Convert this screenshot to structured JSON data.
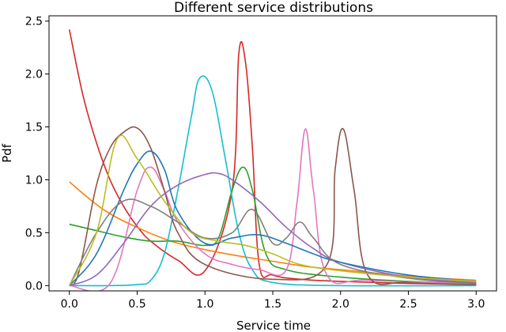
{
  "chart_data": {
    "type": "line",
    "title": "Different service distributions",
    "xlabel": "Service time",
    "ylabel": "Pdf",
    "xlim": [
      -0.15,
      3.15
    ],
    "ylim": [
      -0.05,
      2.55
    ],
    "xticks": [
      0.0,
      0.5,
      1.0,
      1.5,
      2.0,
      2.5,
      3.0
    ],
    "xtick_labels": [
      "0.0",
      "0.5",
      "1.0",
      "1.5",
      "2.0",
      "2.5",
      "3.0"
    ],
    "yticks": [
      0.0,
      0.5,
      1.0,
      1.5,
      2.0,
      2.5
    ],
    "ytick_labels": [
      "0.0",
      "0.5",
      "1.0",
      "1.5",
      "2.0",
      "2.5"
    ],
    "grid": false,
    "legend": "none",
    "series": [
      {
        "color": "#d62728",
        "x": [
          0.0,
          0.1,
          0.2,
          0.3,
          0.4,
          0.5,
          0.6,
          0.8,
          1.0,
          1.2,
          1.25,
          1.3,
          1.35,
          1.4,
          1.5,
          1.7,
          2.0,
          2.5,
          3.0
        ],
        "values": [
          2.42,
          1.8,
          1.35,
          1.0,
          0.75,
          0.56,
          0.42,
          0.24,
          0.14,
          0.9,
          2.2,
          2.1,
          1.3,
          0.2,
          0.1,
          0.06,
          0.04,
          0.02,
          0.01
        ]
      },
      {
        "color": "#ff7f0e",
        "x": [
          0.0,
          0.25,
          0.5,
          0.75,
          1.0,
          1.25,
          1.5,
          1.75,
          2.0,
          2.5,
          3.0
        ],
        "values": [
          0.98,
          0.72,
          0.55,
          0.42,
          0.34,
          0.28,
          0.23,
          0.18,
          0.15,
          0.09,
          0.05
        ]
      },
      {
        "color": "#2ca02c",
        "x": [
          0.0,
          0.2,
          0.4,
          0.6,
          0.8,
          1.0,
          1.1,
          1.2,
          1.28,
          1.35,
          1.45,
          1.6,
          2.0,
          2.5,
          3.0
        ],
        "values": [
          0.58,
          0.52,
          0.46,
          0.42,
          0.42,
          0.38,
          0.45,
          0.9,
          1.12,
          0.9,
          0.3,
          0.15,
          0.08,
          0.04,
          0.02
        ]
      },
      {
        "color": "#17becf",
        "x": [
          0.0,
          0.3,
          0.5,
          0.6,
          0.7,
          0.8,
          0.9,
          0.96,
          1.05,
          1.15,
          1.25,
          1.35,
          1.5,
          2.0,
          3.0
        ],
        "values": [
          0.0,
          0.0,
          0.01,
          0.05,
          0.3,
          0.9,
          1.6,
          1.96,
          1.85,
          1.2,
          0.5,
          0.15,
          0.03,
          0.0,
          0.0
        ]
      },
      {
        "color": "#e377c2",
        "x": [
          0.0,
          0.3,
          0.5,
          0.6,
          0.7,
          0.8,
          1.0,
          1.2,
          1.4,
          1.6,
          1.68,
          1.74,
          1.8,
          1.9,
          2.2,
          3.0
        ],
        "values": [
          0.0,
          0.02,
          0.9,
          1.12,
          0.9,
          0.6,
          0.3,
          0.2,
          0.15,
          0.15,
          0.8,
          1.48,
          0.9,
          0.1,
          0.05,
          0.02
        ]
      },
      {
        "color": "#8c564b",
        "x": [
          0.0,
          0.05,
          0.1,
          0.2,
          0.3,
          0.4,
          0.5,
          0.6,
          0.7,
          0.8,
          1.0,
          1.5,
          1.9,
          1.96,
          2.02,
          2.1,
          2.2,
          2.5,
          3.0
        ],
        "values": [
          0.0,
          0.05,
          0.3,
          0.95,
          1.3,
          1.45,
          1.49,
          1.3,
          0.9,
          0.5,
          0.2,
          0.06,
          0.2,
          1.1,
          1.48,
          0.9,
          0.1,
          0.03,
          0.01
        ]
      },
      {
        "color": "#9467bd",
        "x": [
          0.0,
          0.2,
          0.4,
          0.6,
          0.8,
          1.0,
          1.1,
          1.2,
          1.4,
          1.6,
          1.8,
          2.0,
          2.5,
          3.0
        ],
        "values": [
          0.0,
          0.1,
          0.4,
          0.75,
          0.95,
          1.05,
          1.06,
          1.0,
          0.8,
          0.55,
          0.35,
          0.22,
          0.08,
          0.03
        ]
      },
      {
        "color": "#1f77b4",
        "x": [
          0.0,
          0.2,
          0.4,
          0.5,
          0.6,
          0.7,
          0.8,
          1.0,
          1.2,
          1.4,
          1.6,
          1.8,
          2.0,
          2.5,
          3.0
        ],
        "values": [
          0.0,
          0.3,
          0.9,
          1.15,
          1.27,
          1.1,
          0.7,
          0.4,
          0.45,
          0.48,
          0.4,
          0.3,
          0.22,
          0.1,
          0.04
        ]
      },
      {
        "color": "#7f7f7f",
        "x": [
          0.0,
          0.2,
          0.4,
          0.6,
          0.8,
          1.0,
          1.2,
          1.35,
          1.5,
          1.6,
          1.7,
          1.8,
          2.0,
          2.5,
          3.0
        ],
        "values": [
          0.0,
          0.5,
          0.8,
          0.75,
          0.6,
          0.45,
          0.5,
          0.72,
          0.4,
          0.45,
          0.6,
          0.45,
          0.2,
          0.07,
          0.02
        ]
      },
      {
        "color": "#bcbd22",
        "x": [
          0.0,
          0.2,
          0.35,
          0.5,
          0.7,
          0.9,
          1.1,
          1.3,
          1.5,
          1.7,
          2.0,
          2.5,
          3.0
        ],
        "values": [
          0.0,
          0.5,
          1.38,
          1.2,
          0.8,
          0.5,
          0.42,
          0.38,
          0.3,
          0.2,
          0.14,
          0.08,
          0.04
        ]
      }
    ]
  }
}
